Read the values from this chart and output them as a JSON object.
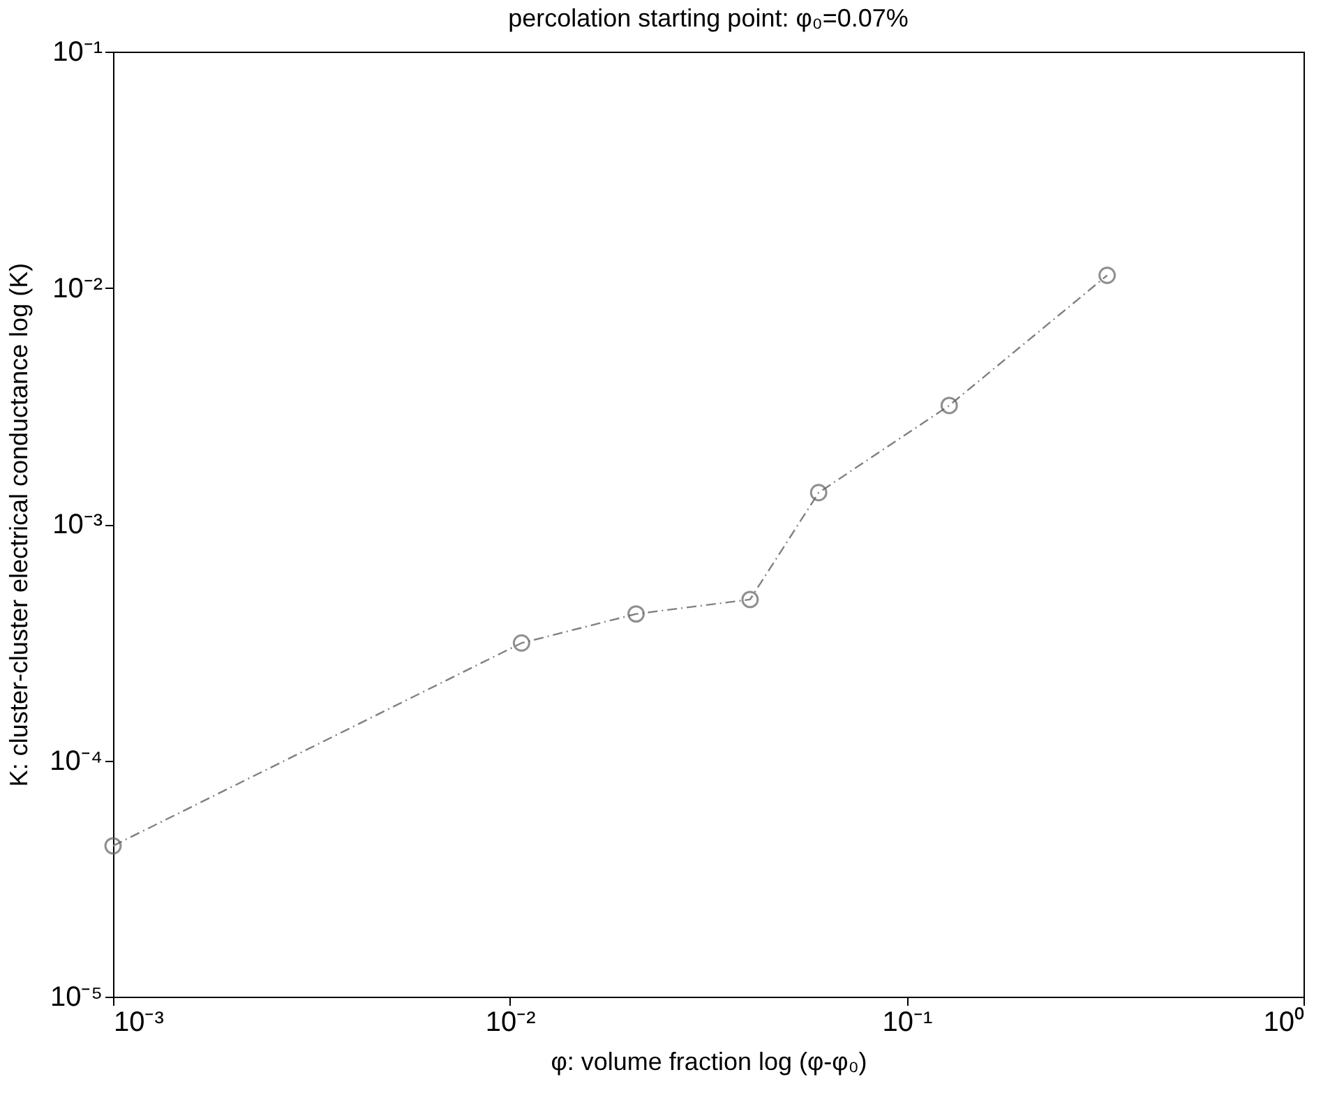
{
  "chart_data": {
    "type": "line",
    "title": "percolation starting point:    φ₀=0.07%",
    "xlabel": "φ: volume fraction    log (φ-φ₀)",
    "ylabel": "K: cluster-cluster electrical conductance    log (K)",
    "x": [
      0.001,
      0.0107,
      0.0208,
      0.0403,
      0.06,
      0.128,
      0.32
    ],
    "series": [
      {
        "color": "#808080",
        "values": [
          4.35e-05,
          0.000314,
          0.000417,
          0.00048,
          0.00136,
          0.00318,
          0.0113
        ]
      }
    ],
    "log": "xy",
    "xlim": [
      0.001,
      1
    ],
    "xticks": [
      {
        "value": 0.001,
        "label": "10⁻³"
      },
      {
        "value": 0.01,
        "label": "10⁻²"
      },
      {
        "value": 0.1,
        "label": "10⁻¹"
      },
      {
        "value": 1,
        "label": "10⁰"
      }
    ],
    "ylim": [
      1e-05,
      0.1
    ],
    "yticks": [
      {
        "value": 1e-05,
        "label": "10⁻⁵"
      },
      {
        "value": 0.0001,
        "label": "10⁻⁴"
      },
      {
        "value": 0.001,
        "label": "10⁻³"
      },
      {
        "value": 0.01,
        "label": "10⁻²"
      },
      {
        "value": 0.1,
        "label": "10⁻¹"
      }
    ],
    "grid": false,
    "marker": "circle",
    "line_style": "dashed"
  }
}
